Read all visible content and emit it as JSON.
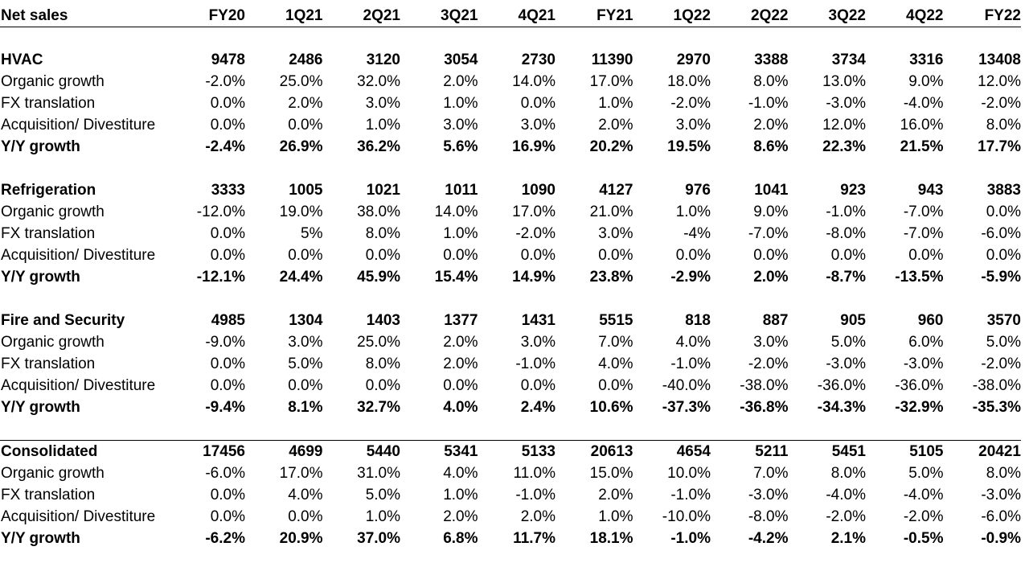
{
  "chart_data": {
    "type": "table",
    "header_label": "Net sales",
    "columns": [
      "FY20",
      "1Q21",
      "2Q21",
      "3Q21",
      "4Q21",
      "FY21",
      "1Q22",
      "2Q22",
      "3Q22",
      "4Q22",
      "FY22"
    ],
    "sections": [
      {
        "name": "HVAC",
        "net_sales": [
          "9478",
          "2486",
          "3120",
          "3054",
          "2730",
          "11390",
          "2970",
          "3388",
          "3734",
          "3316",
          "13408"
        ],
        "rows": [
          {
            "label": "Organic growth",
            "values": [
              "-2.0%",
              "25.0%",
              "32.0%",
              "2.0%",
              "14.0%",
              "17.0%",
              "18.0%",
              "8.0%",
              "13.0%",
              "9.0%",
              "12.0%"
            ]
          },
          {
            "label": "FX translation",
            "values": [
              "0.0%",
              "2.0%",
              "3.0%",
              "1.0%",
              "0.0%",
              "1.0%",
              "-2.0%",
              "-1.0%",
              "-3.0%",
              "-4.0%",
              "-2.0%"
            ]
          },
          {
            "label": "Acquisition/ Divestiture",
            "values": [
              "0.0%",
              "0.0%",
              "1.0%",
              "3.0%",
              "3.0%",
              "2.0%",
              "3.0%",
              "2.0%",
              "12.0%",
              "16.0%",
              "8.0%"
            ]
          },
          {
            "label": "Y/Y growth",
            "values": [
              "-2.4%",
              "26.9%",
              "36.2%",
              "5.6%",
              "16.9%",
              "20.2%",
              "19.5%",
              "8.6%",
              "22.3%",
              "21.5%",
              "17.7%"
            ]
          }
        ]
      },
      {
        "name": "Refrigeration",
        "net_sales": [
          "3333",
          "1005",
          "1021",
          "1011",
          "1090",
          "4127",
          "976",
          "1041",
          "923",
          "943",
          "3883"
        ],
        "rows": [
          {
            "label": "Organic growth",
            "values": [
              "-12.0%",
              "19.0%",
              "38.0%",
              "14.0%",
              "17.0%",
              "21.0%",
              "1.0%",
              "9.0%",
              "-1.0%",
              "-7.0%",
              "0.0%"
            ]
          },
          {
            "label": "FX translation",
            "values": [
              "0.0%",
              "5%",
              "8.0%",
              "1.0%",
              "-2.0%",
              "3.0%",
              "-4%",
              "-7.0%",
              "-8.0%",
              "-7.0%",
              "-6.0%"
            ]
          },
          {
            "label": "Acquisition/ Divestiture",
            "values": [
              "0.0%",
              "0.0%",
              "0.0%",
              "0.0%",
              "0.0%",
              "0.0%",
              "0.0%",
              "0.0%",
              "0.0%",
              "0.0%",
              "0.0%"
            ]
          },
          {
            "label": "Y/Y growth",
            "values": [
              "-12.1%",
              "24.4%",
              "45.9%",
              "15.4%",
              "14.9%",
              "23.8%",
              "-2.9%",
              "2.0%",
              "-8.7%",
              "-13.5%",
              "-5.9%"
            ]
          }
        ]
      },
      {
        "name": "Fire and Security",
        "net_sales": [
          "4985",
          "1304",
          "1403",
          "1377",
          "1431",
          "5515",
          "818",
          "887",
          "905",
          "960",
          "3570"
        ],
        "rows": [
          {
            "label": "Organic growth",
            "values": [
              "-9.0%",
              "3.0%",
              "25.0%",
              "2.0%",
              "3.0%",
              "7.0%",
              "4.0%",
              "3.0%",
              "5.0%",
              "6.0%",
              "5.0%"
            ]
          },
          {
            "label": "FX translation",
            "values": [
              "0.0%",
              "5.0%",
              "8.0%",
              "2.0%",
              "-1.0%",
              "4.0%",
              "-1.0%",
              "-2.0%",
              "-3.0%",
              "-3.0%",
              "-2.0%"
            ]
          },
          {
            "label": "Acquisition/ Divestiture",
            "values": [
              "0.0%",
              "0.0%",
              "0.0%",
              "0.0%",
              "0.0%",
              "0.0%",
              "-40.0%",
              "-38.0%",
              "-36.0%",
              "-36.0%",
              "-38.0%"
            ]
          },
          {
            "label": "Y/Y growth",
            "values": [
              "-9.4%",
              "8.1%",
              "32.7%",
              "4.0%",
              "2.4%",
              "10.6%",
              "-37.3%",
              "-36.8%",
              "-34.3%",
              "-32.9%",
              "-35.3%"
            ]
          }
        ]
      },
      {
        "name": "Consolidated",
        "net_sales": [
          "17456",
          "4699",
          "5440",
          "5341",
          "5133",
          "20613",
          "4654",
          "5211",
          "5451",
          "5105",
          "20421"
        ],
        "rows": [
          {
            "label": "Organic growth",
            "values": [
              "-6.0%",
              "17.0%",
              "31.0%",
              "4.0%",
              "11.0%",
              "15.0%",
              "10.0%",
              "7.0%",
              "8.0%",
              "5.0%",
              "8.0%"
            ]
          },
          {
            "label": "FX translation",
            "values": [
              "0.0%",
              "4.0%",
              "5.0%",
              "1.0%",
              "-1.0%",
              "2.0%",
              "-1.0%",
              "-3.0%",
              "-4.0%",
              "-4.0%",
              "-3.0%"
            ]
          },
          {
            "label": "Acquisition/ Divestiture",
            "values": [
              "0.0%",
              "0.0%",
              "1.0%",
              "2.0%",
              "2.0%",
              "1.0%",
              "-10.0%",
              "-8.0%",
              "-2.0%",
              "-2.0%",
              "-6.0%"
            ]
          },
          {
            "label": "Y/Y growth",
            "values": [
              "-6.2%",
              "20.9%",
              "37.0%",
              "6.8%",
              "11.7%",
              "18.1%",
              "-1.0%",
              "-4.2%",
              "2.1%",
              "-0.5%",
              "-0.9%"
            ]
          }
        ]
      }
    ]
  }
}
